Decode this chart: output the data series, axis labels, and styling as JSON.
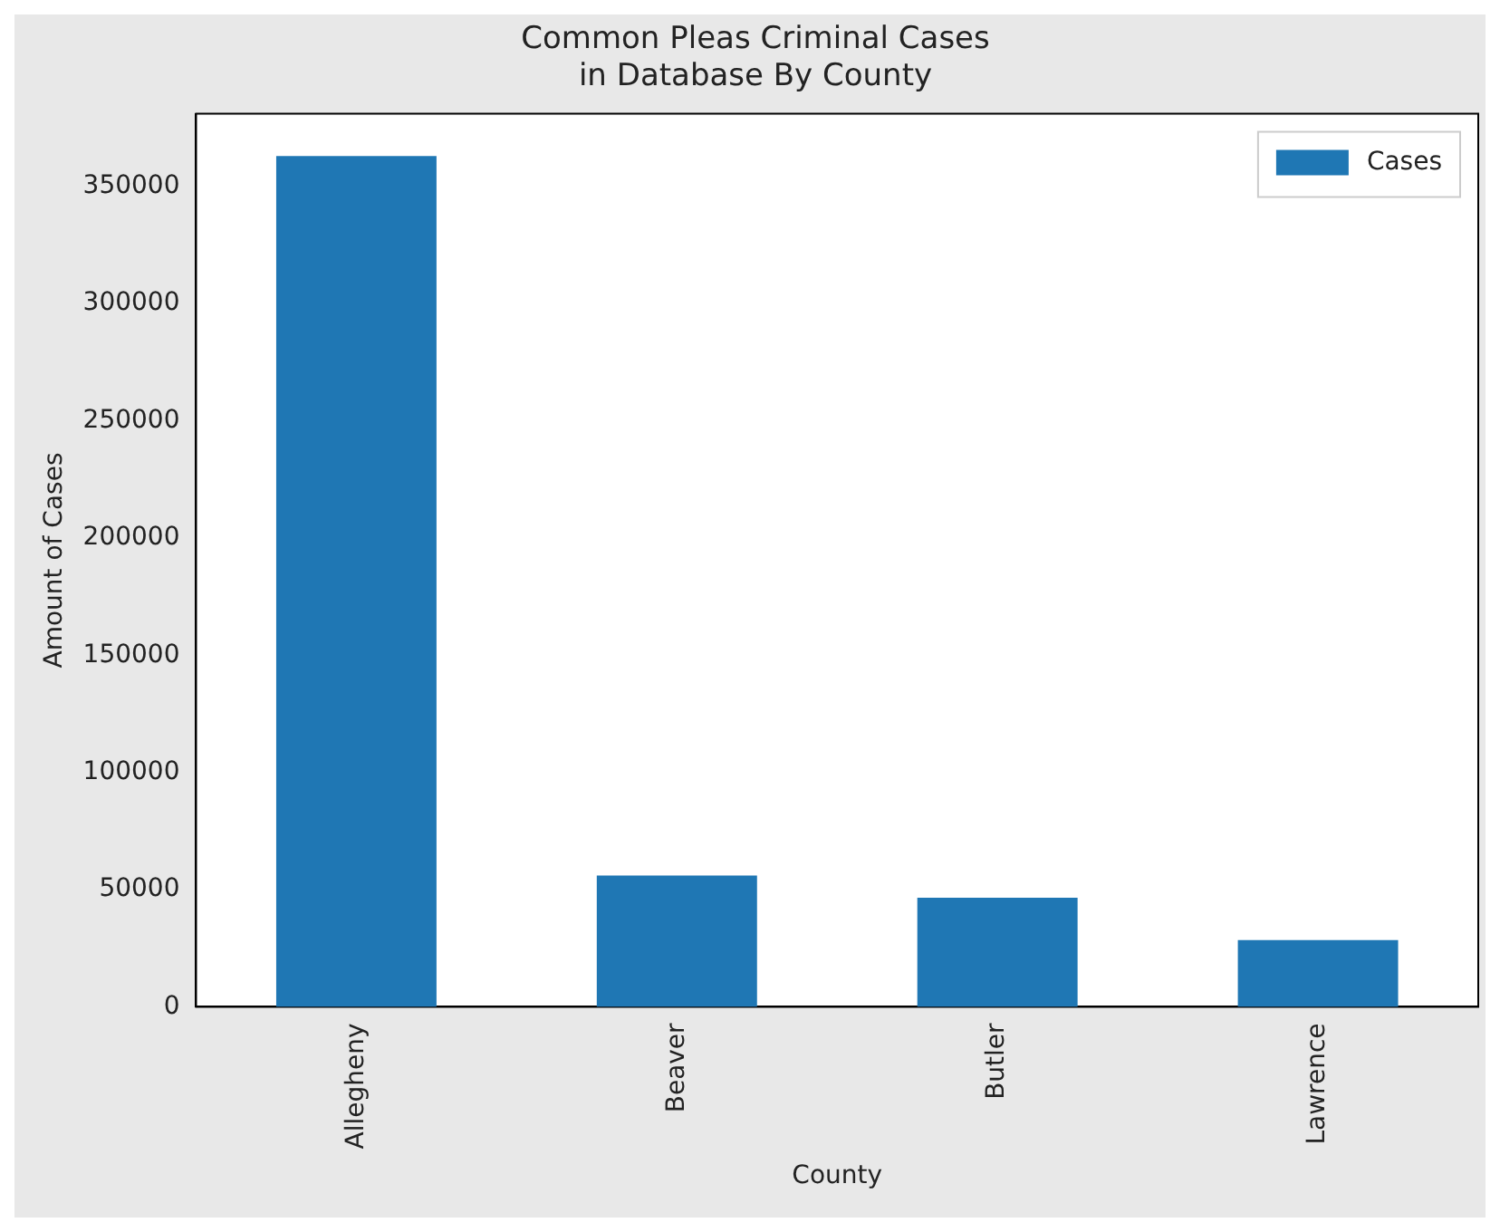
{
  "chart_data": {
    "type": "bar",
    "title": "Common Pleas Criminal Cases\nin Database By County",
    "xlabel": "County",
    "ylabel": "Amount of Cases",
    "categories": [
      "Allegheny",
      "Beaver",
      "Butler",
      "Lawrence"
    ],
    "series": [
      {
        "name": "Cases",
        "color": "#1f77b4",
        "values": [
          363000,
          56000,
          46500,
          28500
        ]
      }
    ],
    "ylim": [
      0,
      381000
    ],
    "yticks": [
      0,
      50000,
      100000,
      150000,
      200000,
      250000,
      300000,
      350000
    ],
    "grid": false,
    "legend": "top right"
  }
}
